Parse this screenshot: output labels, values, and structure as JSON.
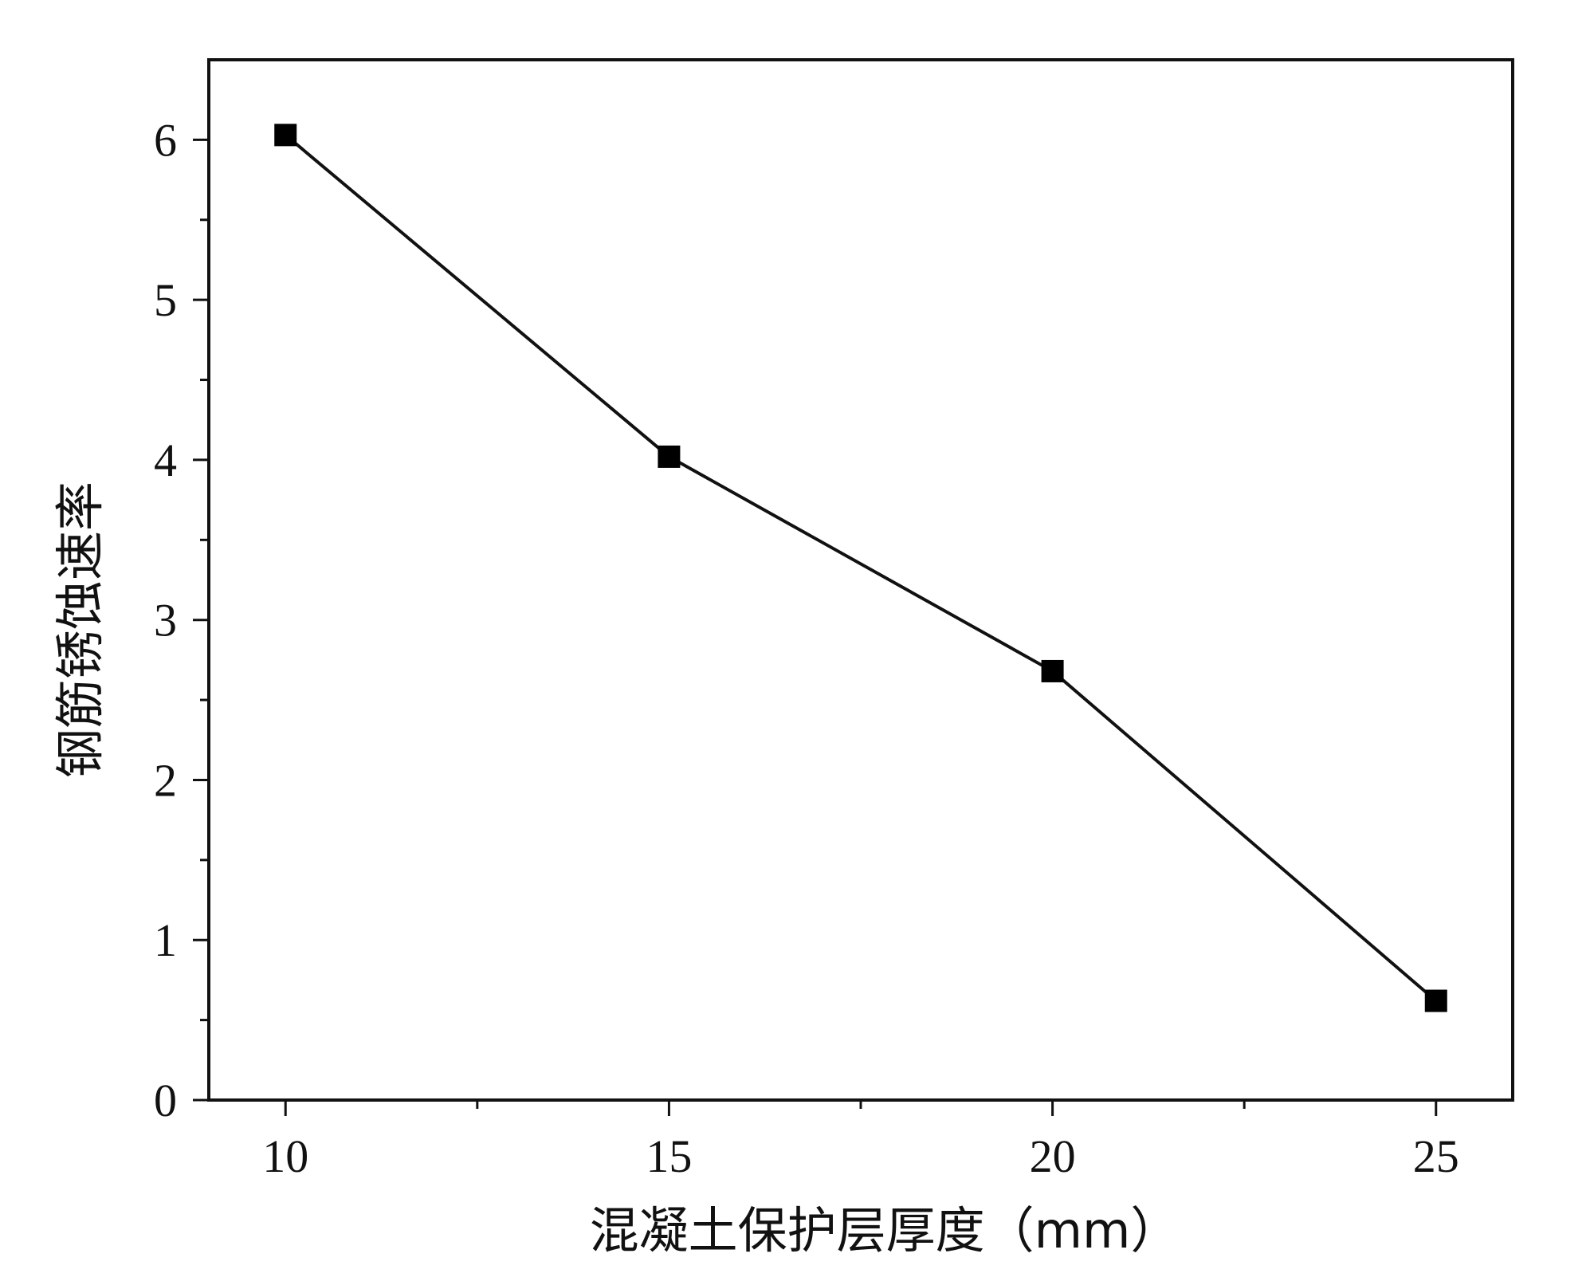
{
  "chart_data": {
    "type": "line",
    "title": "",
    "xlabel": "混凝土保护层厚度（mm）",
    "ylabel": "钢筋锈蚀速率",
    "x": [
      10,
      15,
      20,
      25
    ],
    "series": [
      {
        "values": [
          6.03,
          4.02,
          2.68,
          0.62
        ]
      }
    ],
    "xlim": [
      9,
      26
    ],
    "ylim": [
      0,
      6.5
    ],
    "xticks": [
      10,
      15,
      20,
      25
    ],
    "xticklabels": [
      "10",
      "15",
      "20",
      "25"
    ],
    "yticks": [
      0,
      1,
      2,
      3,
      4,
      5,
      6
    ],
    "yticklabels": [
      "0",
      "1",
      "2",
      "3",
      "4",
      "5",
      "6"
    ],
    "x_minor_ticks": [
      12.5,
      17.5,
      22.5
    ],
    "y_minor_ticks": [
      0.5,
      1.5,
      2.5,
      3.5,
      4.5,
      5.5
    ],
    "marker": "square",
    "line_color": "#111111",
    "marker_color": "#000000",
    "grid": false,
    "legend": "none"
  }
}
